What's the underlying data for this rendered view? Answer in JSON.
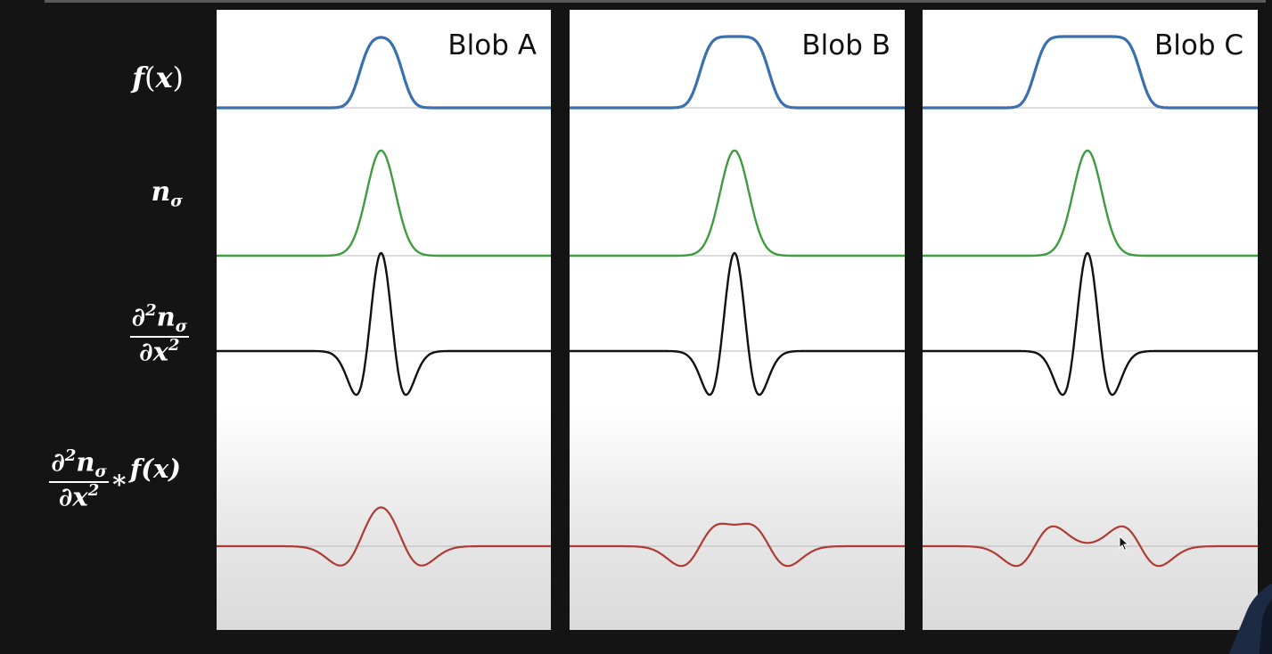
{
  "row_labels": {
    "f": {
      "name": "f",
      "paren_open": "(",
      "arg": "x",
      "paren_close": ")"
    },
    "n": {
      "base": "n",
      "sub": "σ"
    },
    "d2n": {
      "num_d": "∂",
      "num_exp": "2",
      "num_n": "n",
      "num_sub": "σ",
      "den_d": "∂",
      "den_x": "x",
      "den_exp": "2"
    },
    "conv": {
      "num_d": "∂",
      "num_exp": "2",
      "num_n": "n",
      "num_sub": "σ",
      "den_d": "∂",
      "den_x": "x",
      "den_exp": "2",
      "op": "∗",
      "fx": "f(x)"
    }
  },
  "panels": [
    {
      "title": "Blob A",
      "plateau": 0.0
    },
    {
      "title": "Blob B",
      "plateau": 0.8
    },
    {
      "title": "Blob C",
      "plateau": 1.9
    }
  ],
  "colors": {
    "f": "#3a6fb0",
    "n": "#3e9c40",
    "d2n": "#111111",
    "conv": "#b03a34",
    "baseline": "#b8b8b8",
    "background": "#141414"
  },
  "icons": {
    "cursor": "mouse-pointer-icon",
    "presenter": "presenter-silhouette"
  }
}
